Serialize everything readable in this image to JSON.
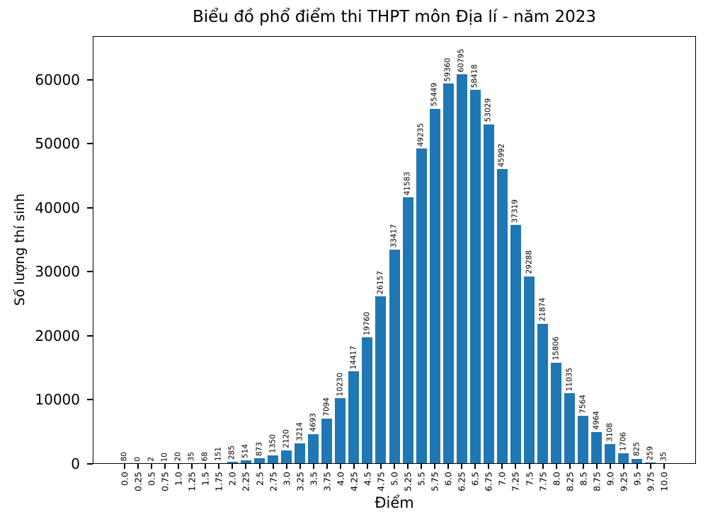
{
  "chart_data": {
    "type": "bar",
    "title": "Biểu đồ phổ điểm thi THPT môn Địa lí - năm 2023",
    "xlabel": "Điểm",
    "ylabel": "Số lượng thí sinh",
    "categories": [
      "0.0",
      "0.25",
      "0.5",
      "0.75",
      "1.0",
      "1.25",
      "1.5",
      "1.75",
      "2.0",
      "2.25",
      "2.5",
      "2.75",
      "3.0",
      "3.25",
      "3.5",
      "3.75",
      "4.0",
      "4.25",
      "4.5",
      "4.75",
      "5.0",
      "5.25",
      "5.5",
      "5.75",
      "6.0",
      "6.25",
      "6.5",
      "6.75",
      "7.0",
      "7.25",
      "7.5",
      "7.75",
      "8.0",
      "8.25",
      "8.5",
      "8.75",
      "9.0",
      "9.25",
      "9.5",
      "9.75",
      "10.0"
    ],
    "values": [
      80,
      0,
      2,
      10,
      20,
      35,
      68,
      151,
      285,
      514,
      873,
      1350,
      2120,
      3214,
      4693,
      7094,
      10230,
      14417,
      19760,
      26157,
      33417,
      41583,
      49235,
      55449,
      59360,
      60795,
      58418,
      53029,
      45992,
      37319,
      29288,
      21874,
      15806,
      11035,
      7564,
      4964,
      3108,
      1706,
      825,
      259,
      35
    ],
    "yticks": [
      0,
      10000,
      20000,
      30000,
      40000,
      50000,
      60000
    ],
    "ylim": [
      0,
      66800
    ],
    "bar_color": "#1f77b4",
    "text_color": "#000000",
    "background": "#ffffff",
    "grid": "off",
    "legend": "none",
    "value_label_style": "rotated 90deg above each bar",
    "xtick_label_style": "rotated 90deg below axis"
  }
}
